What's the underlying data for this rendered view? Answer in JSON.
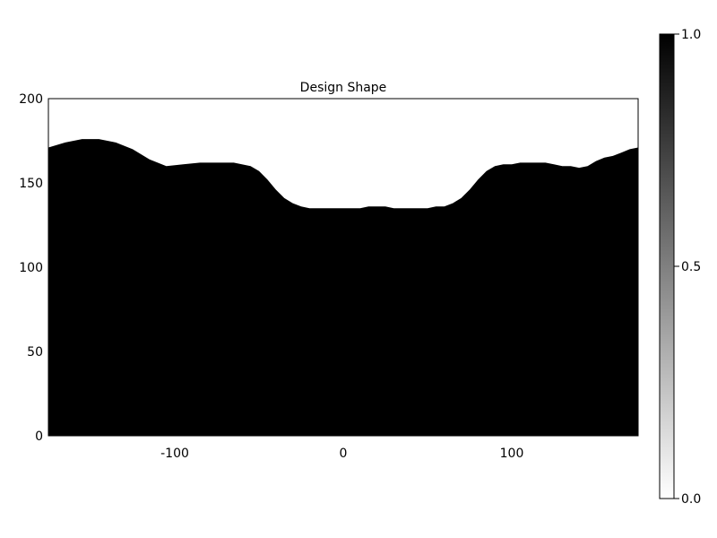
{
  "chart_data": {
    "type": "heatmap",
    "title": "Design Shape",
    "xlabel": "",
    "ylabel": "",
    "xlim": [
      -175,
      175
    ],
    "ylim": [
      0,
      200
    ],
    "x_ticks": [
      -100,
      0,
      100
    ],
    "y_ticks": [
      0,
      50,
      100,
      150,
      200
    ],
    "x_tick_labels": [
      "-100",
      "0",
      "100"
    ],
    "y_tick_labels": [
      "0",
      "50",
      "100",
      "150",
      "200"
    ],
    "grid": false,
    "colorbar": {
      "range": [
        0.0,
        1.0
      ],
      "ticks": [
        0.0,
        0.5,
        1.0
      ],
      "tick_labels": [
        "0.0",
        "0.5",
        "1.0"
      ],
      "low_color": "#ffffff",
      "high_color": "#000000"
    },
    "filled_value": 1.0,
    "empty_value": 0.0,
    "boundary": {
      "x": [
        -175,
        -165,
        -155,
        -145,
        -135,
        -125,
        -115,
        -105,
        -95,
        -85,
        -75,
        -65,
        -55,
        -50,
        -45,
        -40,
        -35,
        -30,
        -25,
        -20,
        -15,
        -10,
        -5,
        0,
        5,
        10,
        15,
        20,
        25,
        30,
        35,
        40,
        45,
        50,
        55,
        60,
        65,
        70,
        75,
        80,
        85,
        90,
        95,
        100,
        105,
        110,
        115,
        120,
        125,
        130,
        135,
        140,
        145,
        150,
        155,
        160,
        165,
        170,
        175
      ],
      "y": [
        171,
        174,
        176,
        176,
        174,
        170,
        164,
        160,
        161,
        162,
        162,
        162,
        160,
        157,
        152,
        146,
        141,
        138,
        136,
        135,
        135,
        135,
        135,
        135,
        135,
        135,
        136,
        136,
        136,
        135,
        135,
        135,
        135,
        135,
        136,
        136,
        138,
        141,
        146,
        152,
        157,
        160,
        161,
        161,
        162,
        162,
        162,
        162,
        161,
        160,
        160,
        159,
        160,
        163,
        165,
        166,
        168,
        170,
        171
      ]
    }
  }
}
